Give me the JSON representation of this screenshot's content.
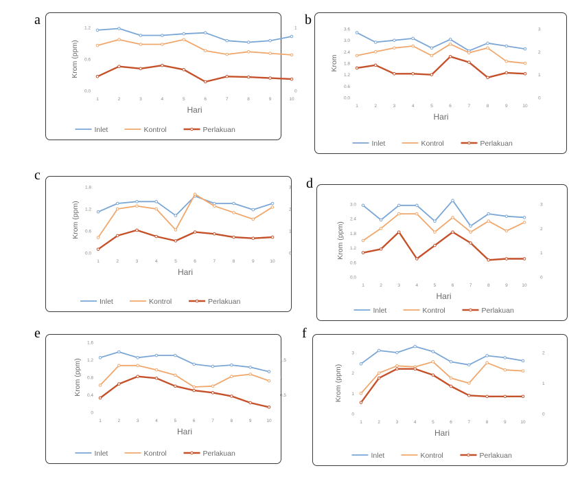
{
  "colors": {
    "inlet": "#7aa6d6",
    "kontrol": "#f0a76c",
    "perlakuan": "#c5512a"
  },
  "legend_labels": [
    "Inlet",
    "Kontrol",
    "Perlakuan"
  ],
  "chart_data": [
    {
      "panel": "a",
      "type": "line",
      "xlabel": "Hari",
      "ylabel": "Krom (ppm)",
      "x": [
        1,
        2,
        3,
        4,
        5,
        6,
        7,
        8,
        9,
        10
      ],
      "ylim": [
        0,
        1.2
      ],
      "yticks": [
        "0.0",
        "0.6",
        "1.2"
      ],
      "y2lim": [
        0,
        1
      ],
      "y2ticks": [
        "0",
        "1"
      ],
      "series": [
        {
          "name": "Inlet",
          "axis": "left",
          "values": [
            1.15,
            1.18,
            1.05,
            1.05,
            1.08,
            1.1,
            0.95,
            0.92,
            0.95,
            1.03
          ]
        },
        {
          "name": "Kontrol",
          "axis": "left",
          "values": [
            0.86,
            0.97,
            0.88,
            0.88,
            0.97,
            0.76,
            0.69,
            0.74,
            0.71,
            0.68
          ]
        },
        {
          "name": "Perlakuan",
          "axis": "left",
          "values": [
            0.27,
            0.46,
            0.42,
            0.48,
            0.4,
            0.17,
            0.27,
            0.26,
            0.24,
            0.22
          ]
        }
      ]
    },
    {
      "panel": "b",
      "type": "line",
      "xlabel": "Hari",
      "ylabel": "Krom",
      "x": [
        1,
        2,
        3,
        4,
        5,
        6,
        7,
        8,
        9,
        10
      ],
      "ylim": [
        0,
        3.6
      ],
      "yticks": [
        "0.0",
        "0.6",
        "1.2",
        "1.8",
        "2.4",
        "3.0",
        "3.6"
      ],
      "y2lim": [
        0,
        3
      ],
      "y2ticks": [
        "0",
        "1",
        "2",
        "3"
      ],
      "series": [
        {
          "name": "Inlet",
          "axis": "left",
          "values": [
            3.4,
            2.9,
            3.0,
            3.1,
            2.6,
            3.05,
            2.45,
            2.85,
            2.7,
            2.55
          ]
        },
        {
          "name": "Kontrol",
          "axis": "left",
          "values": [
            2.2,
            2.4,
            2.6,
            2.7,
            2.2,
            2.8,
            2.35,
            2.6,
            1.9,
            1.8
          ]
        },
        {
          "name": "Perlakuan",
          "axis": "left",
          "values": [
            1.55,
            1.7,
            1.25,
            1.25,
            1.2,
            2.15,
            1.85,
            1.05,
            1.3,
            1.25
          ]
        }
      ]
    },
    {
      "panel": "c",
      "type": "line",
      "xlabel": "Hari",
      "ylabel": "Krom (ppm)",
      "x": [
        1,
        2,
        3,
        4,
        5,
        6,
        7,
        8,
        9,
        10
      ],
      "ylim": [
        0,
        1.8
      ],
      "yticks": [
        "0.0",
        "0.6",
        "1.2",
        "1.8"
      ],
      "y2lim": [
        0,
        3
      ],
      "y2ticks": [
        "0",
        "1",
        "2",
        "3"
      ],
      "series": [
        {
          "name": "Inlet",
          "axis": "left",
          "values": [
            1.12,
            1.35,
            1.4,
            1.4,
            1.02,
            1.55,
            1.35,
            1.35,
            1.18,
            1.35
          ]
        },
        {
          "name": "Kontrol",
          "axis": "left",
          "values": [
            0.42,
            1.2,
            1.28,
            1.2,
            0.63,
            1.6,
            1.28,
            1.1,
            0.92,
            1.25
          ]
        },
        {
          "name": "Perlakuan",
          "axis": "left",
          "values": [
            0.1,
            0.47,
            0.62,
            0.45,
            0.33,
            0.57,
            0.52,
            0.43,
            0.4,
            0.43
          ]
        }
      ]
    },
    {
      "panel": "d",
      "type": "line",
      "xlabel": "Hari",
      "ylabel": "Krom (ppm)",
      "x": [
        1,
        2,
        3,
        4,
        5,
        6,
        7,
        8,
        9,
        10
      ],
      "ylim": [
        0,
        3.0
      ],
      "yticks": [
        "0.0",
        "0.6",
        "1.2",
        "1.8",
        "2.4",
        "3.0"
      ],
      "y2lim": [
        0,
        3
      ],
      "y2ticks": [
        "0",
        "1",
        "2",
        "3"
      ],
      "series": [
        {
          "name": "Inlet",
          "axis": "left",
          "values": [
            2.95,
            2.35,
            2.95,
            2.95,
            2.3,
            3.15,
            2.1,
            2.6,
            2.5,
            2.45
          ]
        },
        {
          "name": "Kontrol",
          "axis": "left",
          "values": [
            1.5,
            2.0,
            2.6,
            2.6,
            1.85,
            2.45,
            1.85,
            2.3,
            1.9,
            2.25
          ]
        },
        {
          "name": "Perlakuan",
          "axis": "left",
          "values": [
            1.0,
            1.15,
            1.85,
            0.75,
            1.3,
            1.85,
            1.4,
            0.7,
            0.75,
            0.75
          ]
        }
      ]
    },
    {
      "panel": "e",
      "type": "line",
      "xlabel": "Hari",
      "ylabel": "Krom (ppm)",
      "x": [
        1,
        2,
        3,
        4,
        5,
        6,
        7,
        8,
        9,
        10
      ],
      "ylim": [
        0,
        1.6
      ],
      "yticks": [
        "0",
        "0.4",
        "0.8",
        "1.2",
        "1.6"
      ],
      "y2lim": [
        0,
        2
      ],
      "y2ticks": [
        "0.5",
        "1",
        "1.5"
      ],
      "series": [
        {
          "name": "Inlet",
          "axis": "left",
          "values": [
            1.25,
            1.38,
            1.25,
            1.3,
            1.3,
            1.1,
            1.05,
            1.08,
            1.03,
            0.93
          ]
        },
        {
          "name": "Kontrol",
          "axis": "left",
          "values": [
            0.62,
            1.07,
            1.07,
            0.97,
            0.85,
            0.58,
            0.6,
            0.82,
            0.87,
            0.72
          ]
        },
        {
          "name": "Perlakuan",
          "axis": "left",
          "values": [
            0.33,
            0.65,
            0.82,
            0.78,
            0.6,
            0.5,
            0.45,
            0.37,
            0.22,
            0.12
          ]
        }
      ]
    },
    {
      "panel": "f",
      "type": "line",
      "xlabel": "Hari",
      "ylabel": "Krom (ppm)",
      "x": [
        1,
        2,
        3,
        4,
        5,
        6,
        7,
        8,
        9,
        10
      ],
      "ylim": [
        0,
        3
      ],
      "yticks": [
        "0",
        "1",
        "2",
        "3"
      ],
      "y2lim": [
        0,
        2
      ],
      "y2ticks": [
        "0",
        "1",
        "2"
      ],
      "series": [
        {
          "name": "Inlet",
          "axis": "left",
          "values": [
            2.45,
            3.1,
            3.0,
            3.3,
            3.05,
            2.55,
            2.4,
            2.85,
            2.75,
            2.6
          ]
        },
        {
          "name": "Kontrol",
          "axis": "left",
          "values": [
            1.0,
            2.0,
            2.35,
            2.3,
            2.55,
            1.75,
            1.5,
            2.5,
            2.15,
            2.1
          ]
        },
        {
          "name": "Perlakuan",
          "axis": "left",
          "values": [
            0.55,
            1.75,
            2.2,
            2.2,
            1.9,
            1.35,
            0.9,
            0.85,
            0.85,
            0.85
          ]
        }
      ]
    }
  ]
}
